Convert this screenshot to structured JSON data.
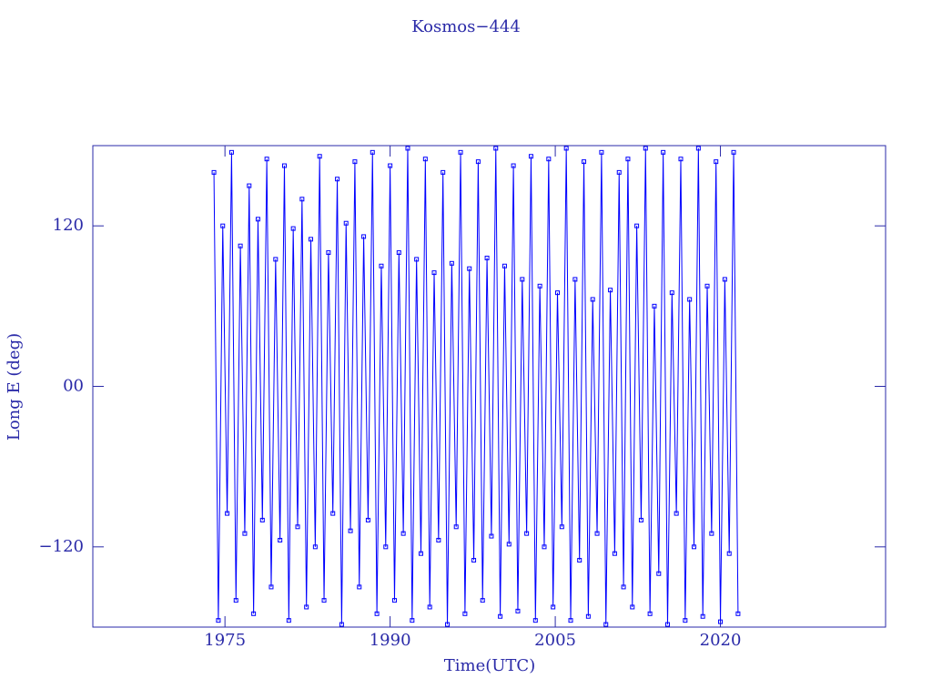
{
  "chart_data": {
    "type": "line",
    "title": "Kosmos−444",
    "x_label": "Time(UTC)",
    "y_label": "Long E (deg)",
    "xlim": [
      1963,
      2035
    ],
    "ylim": [
      -180,
      180
    ],
    "xticks": [
      1975,
      1990,
      2005,
      2020
    ],
    "yticks": [
      {
        "value": -120,
        "label": "−120"
      },
      {
        "value": 0,
        "label": "00"
      },
      120
    ],
    "markers": true,
    "series": [
      {
        "color": "#0000ff",
        "x": [
          1974,
          1974.4,
          1974.8,
          1975.2,
          1975.6,
          1976,
          1976.4,
          1976.8,
          1977.2,
          1977.6,
          1978,
          1978.4,
          1978.8,
          1979.2,
          1979.6,
          1980,
          1980.4,
          1980.8,
          1981.2,
          1981.6,
          1982,
          1982.4,
          1982.8,
          1983.2,
          1983.6,
          1984,
          1984.4,
          1984.8,
          1985.2,
          1985.6,
          1986,
          1986.4,
          1986.8,
          1987.2,
          1987.6,
          1988,
          1988.4,
          1988.8,
          1989.2,
          1989.6,
          1990,
          1990.4,
          1990.8,
          1991.2,
          1991.6,
          1992,
          1992.4,
          1992.8,
          1993.2,
          1993.6,
          1994,
          1994.4,
          1994.8,
          1995.2,
          1995.6,
          1996,
          1996.4,
          1996.8,
          1997.2,
          1997.6,
          1998,
          1998.4,
          1998.8,
          1999.2,
          1999.6,
          2000,
          2000.4,
          2000.8,
          2001.2,
          2001.6,
          2002,
          2002.4,
          2002.8,
          2003.2,
          2003.6,
          2004,
          2004.4,
          2004.8,
          2005.2,
          2005.6,
          2006,
          2006.4,
          2006.8,
          2007.2,
          2007.6,
          2008,
          2008.4,
          2008.8,
          2009.2,
          2009.6,
          2010,
          2010.4,
          2010.8,
          2011.2,
          2011.6,
          2012,
          2012.4,
          2012.8,
          2013.2,
          2013.6,
          2014,
          2014.4,
          2014.8,
          2015.2,
          2015.6,
          2016,
          2016.4,
          2016.8,
          2017.2,
          2017.6,
          2018,
          2018.4,
          2018.8,
          2019.2,
          2019.6,
          2020,
          2020.4,
          2020.8,
          2021.2,
          2021.6
        ],
        "values": [
          160,
          -175,
          120,
          -95,
          175,
          -160,
          105,
          -110,
          150,
          -170,
          125,
          -100,
          170,
          -150,
          95,
          -115,
          165,
          -175,
          118,
          -105,
          140,
          -165,
          110,
          -120,
          172,
          -160,
          100,
          -95,
          155,
          -178,
          122,
          -108,
          168,
          -150,
          112,
          -100,
          175,
          -170,
          90,
          -120,
          165,
          -160,
          100,
          -110,
          178,
          -175,
          95,
          -125,
          170,
          -165,
          85,
          -115,
          160,
          -178,
          92,
          -105,
          175,
          -170,
          88,
          -130,
          168,
          -160,
          96,
          -112,
          178,
          -172,
          90,
          -118,
          165,
          -168,
          80,
          -110,
          172,
          -175,
          75,
          -120,
          170,
          -165,
          70,
          -105,
          178,
          -175,
          80,
          -130,
          168,
          -172,
          65,
          -110,
          175,
          -178,
          72,
          -125,
          160,
          -150,
          170,
          -165,
          120,
          -100,
          178,
          -170,
          60,
          -140,
          175,
          -178,
          70,
          -95,
          170,
          -175,
          65,
          -120,
          178,
          -172,
          75,
          -110,
          168,
          -176,
          80,
          -125,
          175,
          -170
        ]
      }
    ]
  }
}
